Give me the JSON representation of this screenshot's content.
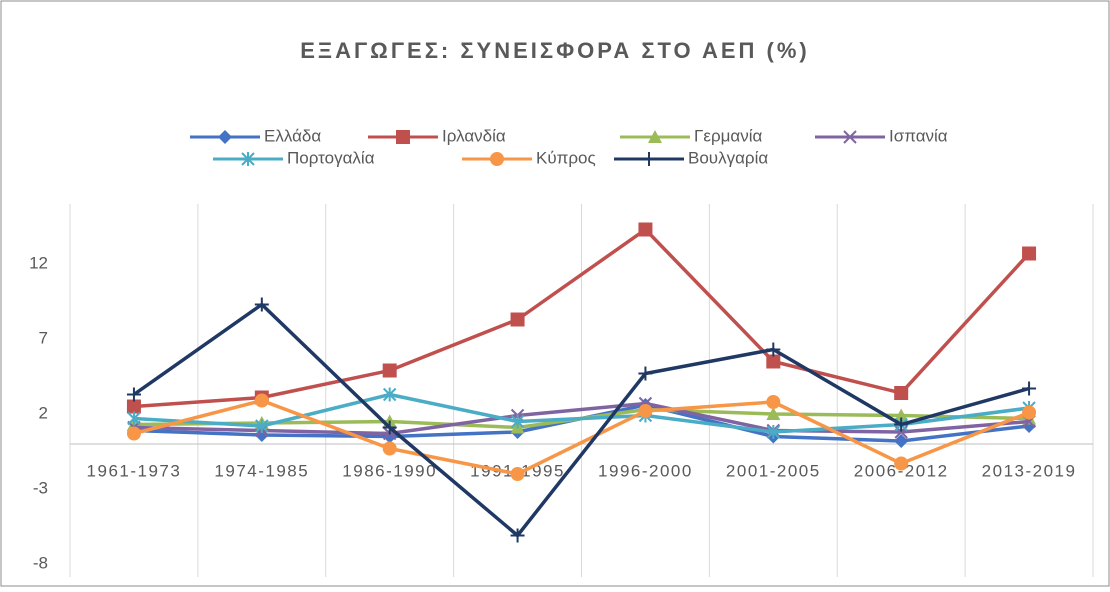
{
  "chart_data": {
    "type": "line",
    "title": "ΕΞΑΓΩΓΕΣ: ΣΥΝΕΙΣΦΟΡΑ ΣΤΟ ΑΕΠ (%)",
    "categories": [
      "1961-1973",
      "1974-1985",
      "1986-1990",
      "1991-1995",
      "1996-2000",
      "2001-2005",
      "2006-2012",
      "2013-2019"
    ],
    "ylim": [
      -8,
      16
    ],
    "yticks": [
      -8,
      -3,
      2,
      7,
      12
    ],
    "grid": false,
    "series": [
      {
        "name": "Ελλάδα",
        "color": "#4472c4",
        "marker": "diamond",
        "values": [
          0.9,
          0.6,
          0.5,
          0.8,
          2.6,
          0.5,
          0.2,
          1.2
        ]
      },
      {
        "name": "Ιρλανδία",
        "color": "#c0504d",
        "marker": "square",
        "values": [
          2.5,
          3.1,
          4.9,
          8.3,
          14.3,
          5.5,
          3.4,
          12.7
        ]
      },
      {
        "name": "Γερμανία",
        "color": "#9bbb59",
        "marker": "triangle",
        "values": [
          1.3,
          1.4,
          1.5,
          1.1,
          2.3,
          2.0,
          1.9,
          1.7
        ]
      },
      {
        "name": "Ισπανία",
        "color": "#8064a2",
        "marker": "x",
        "values": [
          1.1,
          0.9,
          0.7,
          1.9,
          2.7,
          0.9,
          0.8,
          1.5
        ]
      },
      {
        "name": "Πορτογαλία",
        "color": "#4bacc6",
        "marker": "star",
        "values": [
          1.7,
          1.2,
          3.3,
          1.5,
          1.9,
          0.8,
          1.3,
          2.4
        ]
      },
      {
        "name": "Κύπρος",
        "color": "#f79646",
        "marker": "circle",
        "values": [
          0.7,
          2.9,
          -0.3,
          -2.0,
          2.2,
          2.8,
          -1.3,
          2.1
        ]
      },
      {
        "name": "Βουλγαρία",
        "color": "#1f3864",
        "marker": "plus",
        "values": [
          3.3,
          9.3,
          1.1,
          -6.1,
          4.7,
          6.3,
          1.3,
          3.7
        ]
      }
    ]
  }
}
